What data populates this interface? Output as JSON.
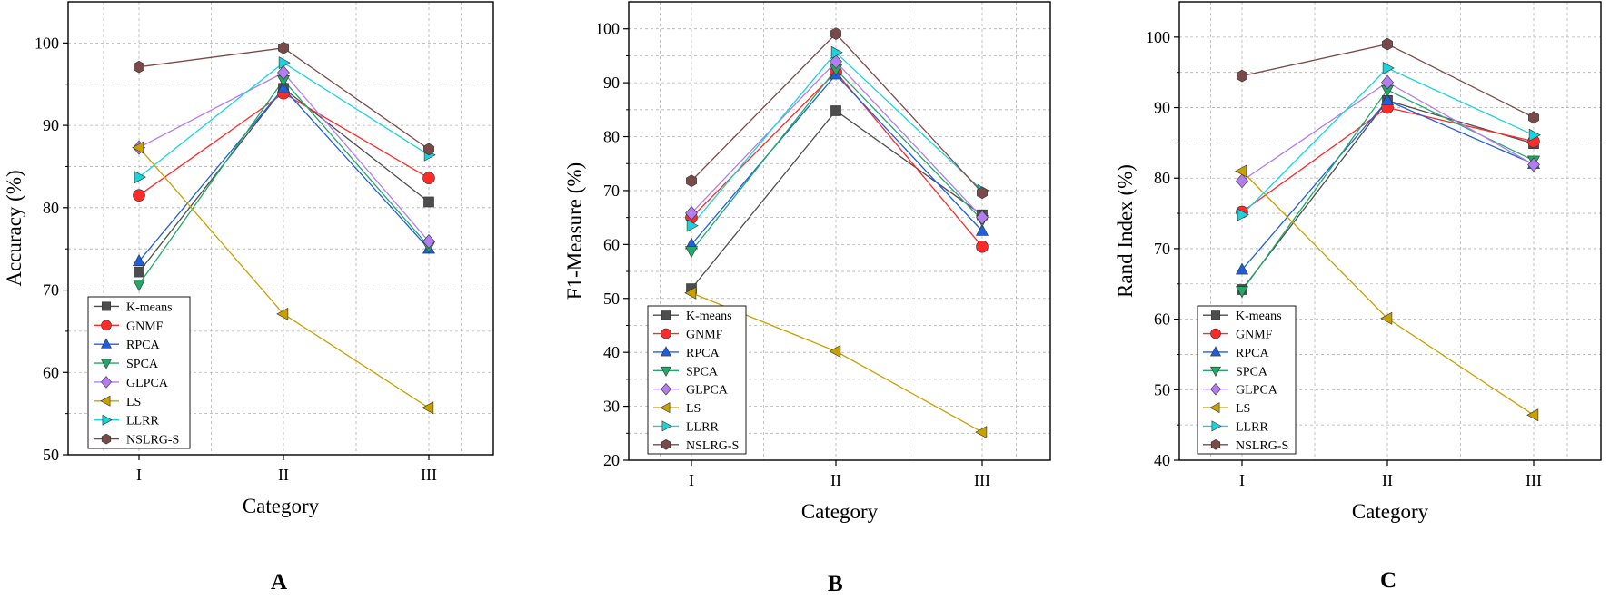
{
  "panel_labels": [
    "A",
    "B",
    "C"
  ],
  "chart_data": [
    {
      "type": "line",
      "panel": "A",
      "xlabel": "Category",
      "ylabel": "Accuracy (%)",
      "categories": [
        "I",
        "II",
        "III"
      ],
      "ylim": [
        50,
        105
      ],
      "yticks": [
        50,
        60,
        70,
        80,
        90,
        100
      ],
      "grid": true,
      "legend_position": "bottom-left",
      "series": [
        {
          "name": "K-means",
          "color": "#4d4d4d",
          "marker": "square",
          "values": [
            72.2,
            94.5,
            80.7
          ]
        },
        {
          "name": "GNMF",
          "color": "#ff2a2a",
          "marker": "circle",
          "values": [
            81.5,
            93.9,
            83.6
          ]
        },
        {
          "name": "RPCA",
          "color": "#1f5fdc",
          "marker": "triangle-up",
          "values": [
            73.5,
            94.5,
            75.0
          ]
        },
        {
          "name": "SPCA",
          "color": "#22a868",
          "marker": "triangle-down",
          "values": [
            70.7,
            95.5,
            75.3
          ]
        },
        {
          "name": "GLPCA",
          "color": "#b37cf0",
          "marker": "diamond",
          "values": [
            87.3,
            96.4,
            75.9
          ]
        },
        {
          "name": "LS",
          "color": "#c8a000",
          "marker": "triangle-left",
          "values": [
            87.3,
            67.1,
            55.7
          ]
        },
        {
          "name": "LLRR",
          "color": "#1ad4dc",
          "marker": "triangle-right",
          "values": [
            83.7,
            97.6,
            86.4
          ]
        },
        {
          "name": "NSLRG-S",
          "color": "#7a4a48",
          "marker": "hexagon",
          "values": [
            97.1,
            99.4,
            87.1
          ]
        }
      ]
    },
    {
      "type": "line",
      "panel": "B",
      "xlabel": "Category",
      "ylabel": "F1-Measure (%)",
      "categories": [
        "I",
        "II",
        "III"
      ],
      "ylim": [
        20,
        105
      ],
      "yticks": [
        20,
        30,
        40,
        50,
        60,
        70,
        80,
        90,
        100
      ],
      "grid": true,
      "legend_position": "bottom-left",
      "series": [
        {
          "name": "K-means",
          "color": "#4d4d4d",
          "marker": "square",
          "values": [
            51.8,
            84.8,
            65.5
          ]
        },
        {
          "name": "GNMF",
          "color": "#ff2a2a",
          "marker": "circle",
          "values": [
            65.0,
            92.0,
            59.6
          ]
        },
        {
          "name": "RPCA",
          "color": "#1f5fdc",
          "marker": "triangle-up",
          "values": [
            60.0,
            91.5,
            62.5
          ]
        },
        {
          "name": "SPCA",
          "color": "#22a868",
          "marker": "triangle-down",
          "values": [
            58.8,
            92.5,
            64.5
          ]
        },
        {
          "name": "GLPCA",
          "color": "#b37cf0",
          "marker": "diamond",
          "values": [
            65.8,
            93.9,
            65.0
          ]
        },
        {
          "name": "LS",
          "color": "#c8a000",
          "marker": "triangle-left",
          "values": [
            51.0,
            40.2,
            25.2
          ]
        },
        {
          "name": "LLRR",
          "color": "#1ad4dc",
          "marker": "triangle-right",
          "values": [
            63.5,
            95.6,
            70.0
          ]
        },
        {
          "name": "NSLRG-S",
          "color": "#7a4a48",
          "marker": "hexagon",
          "values": [
            71.8,
            99.1,
            69.6
          ]
        }
      ]
    },
    {
      "type": "line",
      "panel": "C",
      "xlabel": "Category",
      "ylabel": "Rand Index (%)",
      "categories": [
        "I",
        "II",
        "III"
      ],
      "ylim": [
        40,
        105
      ],
      "yticks": [
        40,
        50,
        60,
        70,
        80,
        90,
        100
      ],
      "grid": true,
      "legend_position": "bottom-left",
      "series": [
        {
          "name": "K-means",
          "color": "#4d4d4d",
          "marker": "square",
          "values": [
            64.2,
            91.0,
            84.9
          ]
        },
        {
          "name": "GNMF",
          "color": "#ff2a2a",
          "marker": "circle",
          "values": [
            75.2,
            90.0,
            85.2
          ]
        },
        {
          "name": "RPCA",
          "color": "#1f5fdc",
          "marker": "triangle-up",
          "values": [
            67.0,
            91.0,
            82.0
          ]
        },
        {
          "name": "SPCA",
          "color": "#22a868",
          "marker": "triangle-down",
          "values": [
            64.0,
            92.5,
            82.5
          ]
        },
        {
          "name": "GLPCA",
          "color": "#b37cf0",
          "marker": "diamond",
          "values": [
            79.6,
            93.6,
            81.9
          ]
        },
        {
          "name": "LS",
          "color": "#c8a000",
          "marker": "triangle-left",
          "values": [
            81.0,
            60.1,
            46.4
          ]
        },
        {
          "name": "LLRR",
          "color": "#1ad4dc",
          "marker": "triangle-right",
          "values": [
            74.8,
            95.6,
            86.1
          ]
        },
        {
          "name": "NSLRG-S",
          "color": "#7a4a48",
          "marker": "hexagon",
          "values": [
            94.5,
            99.0,
            88.6
          ]
        }
      ]
    }
  ]
}
